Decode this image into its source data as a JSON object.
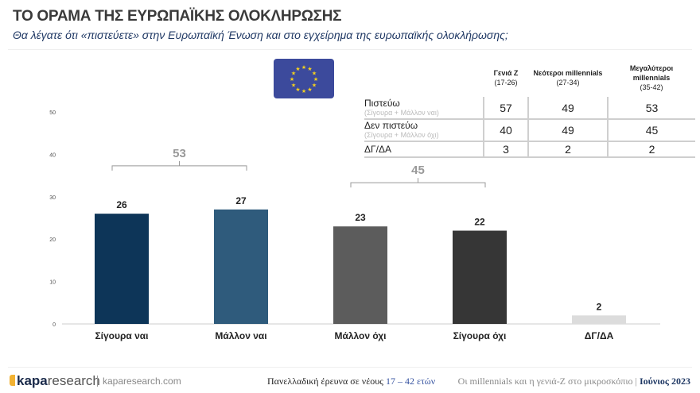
{
  "header": {
    "title": "ΤΟ ΟΡΑΜΑ ΤΗΣ ΕΥΡΩΠΑΪΚΗΣ ΟΛΟΚΛΗΡΩΣΗΣ",
    "subtitle": "Θα λέγατε ότι «πιστεύετε» στην Ευρωπαϊκή Ένωση και στο εγχείρημα της ευρωπαϊκής ολοκλήρωσης;"
  },
  "flag": {
    "icon": "eu-flag-icon",
    "color": "#3c4a9c",
    "star_color": "#f7d21c"
  },
  "chart_data": {
    "type": "bar",
    "categories": [
      "Σίγουρα ναι",
      "Μάλλον ναι",
      "Μάλλον όχι",
      "Σίγουρα όχι",
      "ΔΓ/ΔΑ"
    ],
    "values": [
      26,
      27,
      23,
      22,
      2
    ],
    "colors": [
      "#0d3558",
      "#2f5b7c",
      "#5c5c5c",
      "#363636",
      "#dcdcdc"
    ],
    "ylim": [
      0,
      50
    ],
    "yticks": [
      0,
      10,
      20,
      30,
      40,
      50
    ],
    "grid": false,
    "brackets": [
      {
        "from": 0,
        "to": 1,
        "label": "53"
      },
      {
        "from": 2,
        "to": 3,
        "label": "45"
      }
    ]
  },
  "table": {
    "columns": [
      {
        "name": "Γενιά Ζ",
        "range": "(17-26)"
      },
      {
        "name": "Νεότεροι millennials",
        "range": "(27-34)"
      },
      {
        "name": "Μεγαλύτεροι millennials",
        "range": "(35-42)"
      }
    ],
    "rows": [
      {
        "label": "Πιστεύω",
        "sub": "(Σίγουρα + Μάλλον ναι)",
        "values": [
          "57",
          "49",
          "53"
        ]
      },
      {
        "label": "Δεν πιστεύω",
        "sub": "(Σίγουρα + Μάλλον όχι)",
        "values": [
          "40",
          "49",
          "45"
        ]
      },
      {
        "label": "ΔΓ/ΔΑ",
        "sub": "",
        "values": [
          "3",
          "2",
          "2"
        ]
      }
    ]
  },
  "footer": {
    "logo_bold": "kapa",
    "logo_light": "research",
    "site": "kaparesearch.com",
    "survey_prefix": "Πανελλαδική έρευνα σε νέους",
    "survey_ages": "17 – 42 ετών",
    "series": "Οι millennials και η γενιά-Ζ στο μικροσκόπιο |",
    "date": "Ιούνιος 2023"
  }
}
